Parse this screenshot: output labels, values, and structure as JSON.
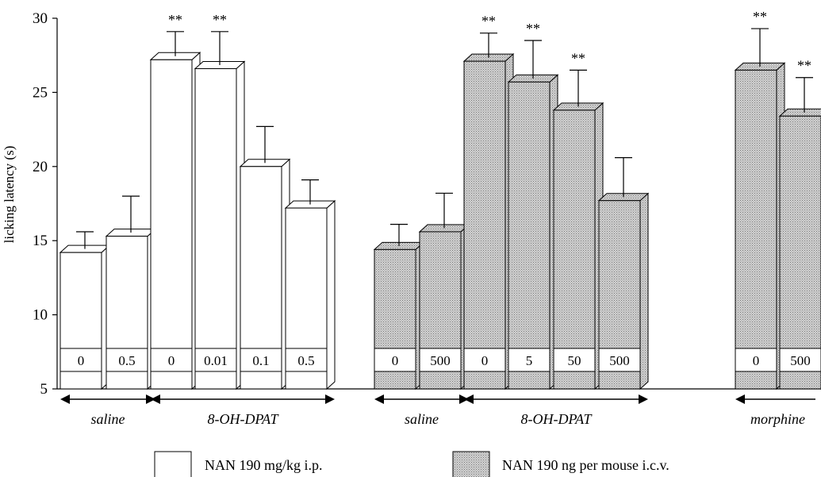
{
  "chart_data": {
    "type": "bar",
    "ylabel": "licking latency (s)",
    "ylim": [
      5,
      30
    ],
    "yticks": [
      5,
      10,
      15,
      20,
      25,
      30
    ],
    "grid": false,
    "significance_mark": "**",
    "legend": [
      {
        "label": "NAN 190  mg/kg i.p.",
        "fill": "#ffffff"
      },
      {
        "label": "NAN 190  ng per mouse i.c.v.",
        "fill": "#c4c4c4"
      }
    ],
    "groups": [
      {
        "label": "saline",
        "fill": "#ffffff",
        "start": 0,
        "end": 1
      },
      {
        "label": "8-OH-DPAT",
        "fill": "#ffffff",
        "start": 2,
        "end": 5
      },
      {
        "label": "saline",
        "fill": "#c4c4c4",
        "start": 6,
        "end": 7
      },
      {
        "label": "8-OH-DPAT",
        "fill": "#c4c4c4",
        "start": 8,
        "end": 11
      },
      {
        "label": "morphine",
        "fill": "#c4c4c4",
        "start": 12,
        "end": 13
      }
    ],
    "bars": [
      {
        "dose": "0",
        "value": 14.2,
        "error": 1.4,
        "sig": false,
        "fill": "#ffffff"
      },
      {
        "dose": "0.5",
        "value": 15.3,
        "error": 2.7,
        "sig": false,
        "fill": "#ffffff"
      },
      {
        "dose": "0",
        "value": 27.2,
        "error": 1.9,
        "sig": true,
        "fill": "#ffffff"
      },
      {
        "dose": "0.01",
        "value": 26.6,
        "error": 2.5,
        "sig": true,
        "fill": "#ffffff"
      },
      {
        "dose": "0.1",
        "value": 20.0,
        "error": 2.7,
        "sig": false,
        "fill": "#ffffff"
      },
      {
        "dose": "0.5",
        "value": 17.2,
        "error": 1.9,
        "sig": false,
        "fill": "#ffffff"
      },
      {
        "dose": "0",
        "value": 14.4,
        "error": 1.7,
        "sig": false,
        "fill": "#c4c4c4"
      },
      {
        "dose": "500",
        "value": 15.6,
        "error": 2.6,
        "sig": false,
        "fill": "#c4c4c4"
      },
      {
        "dose": "0",
        "value": 27.1,
        "error": 1.9,
        "sig": true,
        "fill": "#c4c4c4"
      },
      {
        "dose": "5",
        "value": 25.7,
        "error": 2.8,
        "sig": true,
        "fill": "#c4c4c4"
      },
      {
        "dose": "50",
        "value": 23.8,
        "error": 2.7,
        "sig": true,
        "fill": "#c4c4c4"
      },
      {
        "dose": "500",
        "value": 17.7,
        "error": 2.9,
        "sig": false,
        "fill": "#c4c4c4"
      },
      {
        "dose": "0",
        "value": 26.5,
        "error": 2.8,
        "sig": true,
        "fill": "#c4c4c4"
      },
      {
        "dose": "500",
        "value": 23.4,
        "error": 2.6,
        "sig": true,
        "fill": "#c4c4c4"
      }
    ]
  }
}
